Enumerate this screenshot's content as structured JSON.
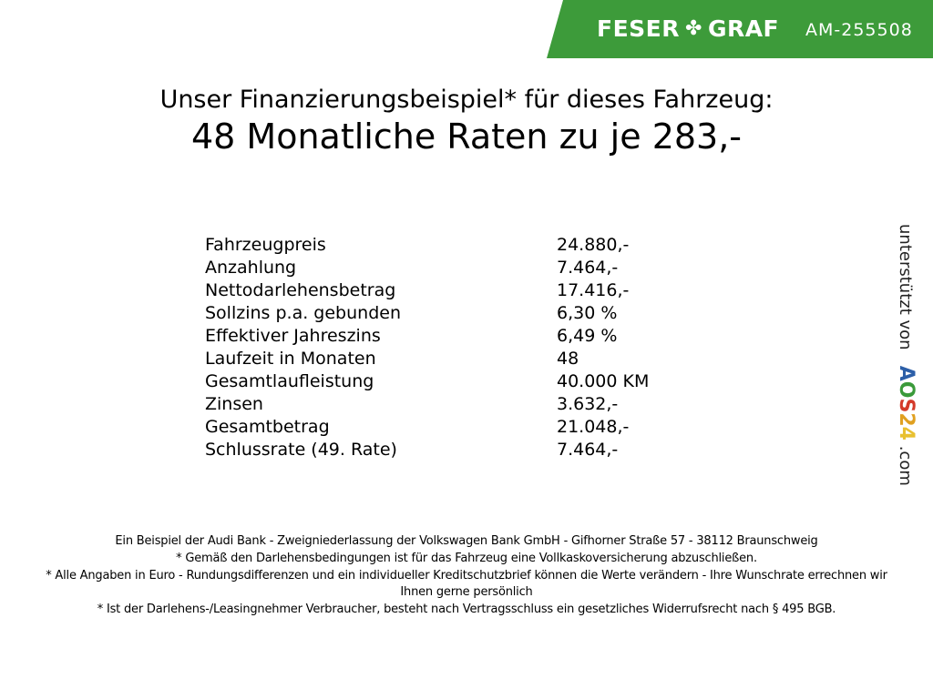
{
  "header": {
    "brand_left": "FESER",
    "brand_right": "GRAF",
    "brand_icon": "clover-icon",
    "vehicle_code": "AM-255508",
    "color": "#3d9b3a"
  },
  "title": {
    "line1": "Unser Finanzierungsbeispiel* für dieses Fahrzeug:",
    "line2": "48 Monatliche Raten zu je 283,-"
  },
  "rows": [
    {
      "label": "Fahrzeugpreis",
      "value": "24.880,-"
    },
    {
      "label": "Anzahlung",
      "value": "7.464,-"
    },
    {
      "label": "Nettodarlehensbetrag",
      "value": "17.416,-"
    },
    {
      "label": "Sollzins p.a. gebunden",
      "value": "6,30 %"
    },
    {
      "label": "Effektiver Jahreszins",
      "value": "6,49 %"
    },
    {
      "label": "Laufzeit in Monaten",
      "value": "48"
    },
    {
      "label": "Gesamtlaufleistung",
      "value": "40.000 KM"
    },
    {
      "label": "Zinsen",
      "value": "3.632,-"
    },
    {
      "label": "Gesamtbetrag",
      "value": "21.048,-"
    },
    {
      "label": "Schlussrate (49. Rate)",
      "value": "7.464,-"
    }
  ],
  "side": {
    "text": "unterstützt von",
    "logo": [
      "A",
      "O",
      "S",
      "2",
      "4"
    ],
    "logo_colors": [
      "#2c5fa8",
      "#3a9a3a",
      "#d43a2a",
      "#e0a020",
      "#e8c030"
    ],
    "suffix": ".com"
  },
  "footer": [
    "Ein Beispiel der Audi Bank - Zweigniederlassung der Volkswagen Bank GmbH - Gifhorner Straße 57 - 38112 Braunschweig",
    "* Gemäß den Darlehensbedingungen ist für das Fahrzeug eine Vollkaskoversicherung abzuschließen.",
    "* Alle Angaben in Euro - Rundungsdifferenzen und ein individueller Kreditschutzbrief können die Werte verändern - Ihre Wunschrate errechnen wir Ihnen gerne persönlich",
    "* Ist der Darlehens-/Leasingnehmer Verbraucher, besteht nach Vertragsschluss ein gesetzliches Widerrufsrecht nach § 495 BGB."
  ]
}
